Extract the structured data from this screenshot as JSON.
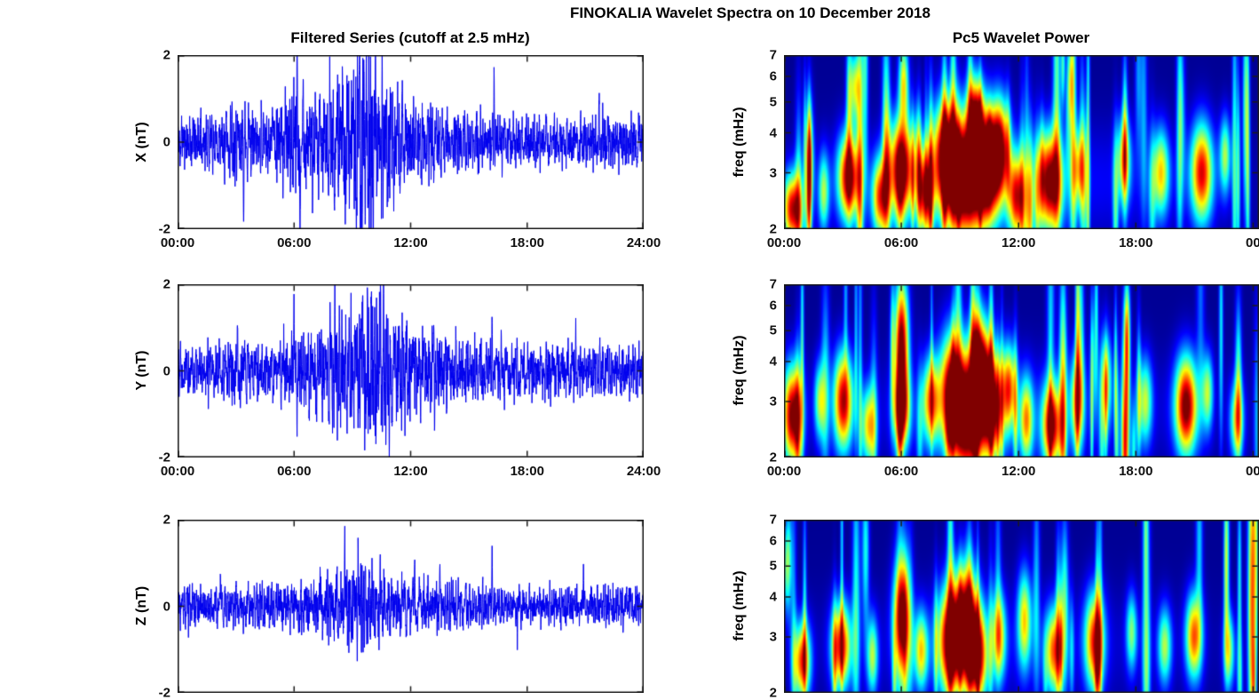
{
  "figure": {
    "title": "FINOKALIA Wavelet Spectra on 10 December 2018",
    "background": "#ffffff"
  },
  "style": {
    "axis_color": "#1a1a1a",
    "text_color": "#000000",
    "heat_background": "#00008c"
  },
  "chart_data": [
    {
      "id": "x-filtered-series",
      "type": "line",
      "row": 0,
      "column": "left",
      "title": "Filtered Series (cutoff at 2.5 mHz)",
      "ylabel": "X (nT)",
      "ylim": [
        -2,
        2
      ],
      "xlim_hours": [
        0,
        24
      ],
      "xticks_hours": [
        0,
        6,
        12,
        18,
        24
      ],
      "xtick_labels": [
        "00:00",
        "06:00",
        "12:00",
        "18:00",
        "24:00"
      ],
      "yticks": [
        2,
        0,
        -2
      ],
      "ytick_labels": [
        "2",
        "0",
        "-2"
      ],
      "line_color": "#0000ee",
      "series": {
        "name": "X filtered",
        "seed": 11,
        "spike_width_hours": 0.02,
        "envelope": [
          [
            0,
            0.3
          ],
          [
            2,
            0.32
          ],
          [
            3,
            0.45
          ],
          [
            4,
            0.33
          ],
          [
            5,
            0.4
          ],
          [
            6,
            0.6
          ],
          [
            7,
            0.55
          ],
          [
            8,
            0.8
          ],
          [
            9,
            1.0
          ],
          [
            9.7,
            1.05
          ],
          [
            10.3,
            0.9
          ],
          [
            11,
            0.62
          ],
          [
            12,
            0.48
          ],
          [
            13,
            0.42
          ],
          [
            14,
            0.35
          ],
          [
            16,
            0.3
          ],
          [
            17,
            0.3
          ],
          [
            20,
            0.28
          ],
          [
            22,
            0.32
          ],
          [
            24,
            0.3
          ]
        ],
        "spikes": [
          [
            3.4,
            -1.05
          ],
          [
            4.9,
            0.95
          ],
          [
            6.15,
            1.75
          ],
          [
            6.3,
            -1.8
          ],
          [
            8.9,
            1.25
          ],
          [
            9.6,
            1.55
          ],
          [
            9.9,
            -1.35
          ],
          [
            10.2,
            1.3
          ],
          [
            16.3,
            1.65
          ],
          [
            21.7,
            0.8
          ]
        ]
      }
    },
    {
      "id": "y-filtered-series",
      "type": "line",
      "row": 1,
      "column": "left",
      "title": "",
      "ylabel": "Y (nT)",
      "ylim": [
        -2,
        2
      ],
      "xlim_hours": [
        0,
        24
      ],
      "xticks_hours": [
        0,
        6,
        12,
        18,
        24
      ],
      "xtick_labels": [
        "00:00",
        "06:00",
        "12:00",
        "18:00",
        "24:00"
      ],
      "yticks": [
        2,
        0,
        -2
      ],
      "ytick_labels": [
        "2",
        "0",
        "-2"
      ],
      "line_color": "#0000ee",
      "series": {
        "name": "Y filtered",
        "seed": 22,
        "spike_width_hours": 0.02,
        "envelope": [
          [
            0,
            0.3
          ],
          [
            1,
            0.28
          ],
          [
            2,
            0.32
          ],
          [
            3,
            0.38
          ],
          [
            4,
            0.3
          ],
          [
            5,
            0.33
          ],
          [
            6,
            0.45
          ],
          [
            7,
            0.48
          ],
          [
            8,
            0.62
          ],
          [
            9,
            0.78
          ],
          [
            9.8,
            0.92
          ],
          [
            10.5,
            0.85
          ],
          [
            11,
            0.68
          ],
          [
            12,
            0.52
          ],
          [
            13,
            0.48
          ],
          [
            14,
            0.38
          ],
          [
            15,
            0.33
          ],
          [
            16,
            0.35
          ],
          [
            18,
            0.3
          ],
          [
            20,
            0.3
          ],
          [
            22,
            0.32
          ],
          [
            24,
            0.3
          ]
        ],
        "spikes": [
          [
            3.6,
            0.9
          ],
          [
            6.0,
            1.35
          ],
          [
            6.15,
            -0.95
          ],
          [
            8.1,
            1.15
          ],
          [
            9.5,
            1.45
          ],
          [
            10.4,
            1.5
          ],
          [
            10.9,
            -1.9
          ],
          [
            12.1,
            0.85
          ],
          [
            16.2,
            1.05
          ],
          [
            20.5,
            0.65
          ]
        ]
      }
    },
    {
      "id": "z-filtered-series",
      "type": "line",
      "row": 2,
      "column": "left",
      "title": "",
      "ylabel": "Z (nT)",
      "ylim": [
        -2,
        2
      ],
      "xlim_hours": [
        0,
        24
      ],
      "xticks_hours": [
        0,
        6,
        12,
        18,
        24
      ],
      "xtick_labels": [],
      "yticks": [
        2,
        0,
        -2
      ],
      "ytick_labels": [
        "2",
        "0",
        "-2"
      ],
      "line_color": "#0000ee",
      "series": {
        "name": "Z filtered",
        "seed": 33,
        "spike_width_hours": 0.02,
        "envelope": [
          [
            0,
            0.22
          ],
          [
            2,
            0.25
          ],
          [
            4,
            0.22
          ],
          [
            6,
            0.3
          ],
          [
            7,
            0.28
          ],
          [
            8,
            0.4
          ],
          [
            9,
            0.52
          ],
          [
            10,
            0.48
          ],
          [
            11,
            0.32
          ],
          [
            12,
            0.3
          ],
          [
            13,
            0.28
          ],
          [
            14,
            0.26
          ],
          [
            16,
            0.26
          ],
          [
            18,
            0.22
          ],
          [
            20,
            0.22
          ],
          [
            22,
            0.23
          ],
          [
            24,
            0.22
          ]
        ],
        "spikes": [
          [
            2.2,
            0.85
          ],
          [
            3.4,
            -0.8
          ],
          [
            6.3,
            -0.7
          ],
          [
            8.6,
            1.0
          ],
          [
            9.3,
            0.95
          ],
          [
            12.2,
            1.05
          ],
          [
            13.5,
            0.75
          ],
          [
            16.2,
            1.5
          ],
          [
            17.5,
            -0.55
          ],
          [
            20.9,
            0.65
          ],
          [
            23.3,
            0.55
          ]
        ]
      }
    },
    {
      "id": "x-wavelet-power",
      "type": "heatmap",
      "row": 0,
      "column": "right",
      "title": "Pc5 Wavelet Power",
      "ylabel": "freq (mHz)",
      "flim_mhz": [
        2,
        7
      ],
      "yscale": "log",
      "xlim_hours": [
        0,
        24.3
      ],
      "xticks_hours": [
        0,
        6,
        12,
        18,
        24
      ],
      "xtick_labels": [
        "00:00",
        "06:00",
        "12:00",
        "18:00",
        "00"
      ],
      "yticks": [
        7,
        6,
        5,
        4,
        3,
        2
      ],
      "ytick_labels": [
        "7",
        "6",
        "5",
        "4",
        "3",
        "2"
      ],
      "colormap": "jet",
      "background_level": 0.02,
      "streaks": {
        "seed": 101,
        "count": 48,
        "amp_range": [
          0.2,
          0.45
        ]
      },
      "events": [
        [
          12,
          2.8,
          7,
          0.3,
          0.12
        ],
        [
          0.4,
          2.3,
          0.35,
          0.18,
          0.9
        ],
        [
          1.3,
          3.2,
          0.15,
          0.3,
          0.45
        ],
        [
          2.0,
          2.6,
          0.2,
          0.2,
          0.5
        ],
        [
          3.3,
          2.9,
          0.4,
          0.22,
          0.95
        ],
        [
          3.6,
          5.6,
          0.2,
          0.18,
          0.55
        ],
        [
          4.9,
          2.5,
          0.3,
          0.2,
          0.75
        ],
        [
          6.0,
          3.1,
          0.45,
          0.25,
          1.0
        ],
        [
          6.1,
          5.8,
          0.18,
          0.22,
          0.6
        ],
        [
          7.2,
          2.6,
          0.3,
          0.22,
          0.8
        ],
        [
          8.3,
          3.4,
          0.5,
          0.28,
          1.0
        ],
        [
          9.2,
          2.8,
          0.6,
          0.3,
          1.0
        ],
        [
          9.8,
          4.4,
          0.3,
          0.22,
          0.9
        ],
        [
          10.3,
          3.0,
          0.5,
          0.28,
          1.0
        ],
        [
          11.0,
          3.6,
          0.35,
          0.25,
          0.9
        ],
        [
          11.9,
          2.5,
          0.3,
          0.22,
          0.8
        ],
        [
          13.6,
          2.8,
          0.45,
          0.25,
          0.95
        ],
        [
          15.1,
          3.1,
          0.22,
          0.2,
          0.5
        ],
        [
          17.4,
          3.3,
          0.25,
          0.22,
          0.55
        ],
        [
          19.3,
          3.0,
          0.3,
          0.22,
          0.6
        ],
        [
          21.4,
          3.0,
          0.4,
          0.25,
          0.85
        ],
        [
          22.6,
          3.4,
          0.2,
          0.2,
          0.5
        ]
      ]
    },
    {
      "id": "y-wavelet-power",
      "type": "heatmap",
      "row": 1,
      "column": "right",
      "title": "",
      "ylabel": "freq (mHz)",
      "flim_mhz": [
        2,
        7
      ],
      "yscale": "log",
      "xlim_hours": [
        0,
        24.3
      ],
      "xticks_hours": [
        0,
        6,
        12,
        18,
        24
      ],
      "xtick_labels": [
        "00:00",
        "06:00",
        "12:00",
        "18:00",
        "00"
      ],
      "yticks": [
        7,
        6,
        5,
        4,
        3,
        2
      ],
      "ytick_labels": [
        "7",
        "6",
        "5",
        "4",
        "3",
        "2"
      ],
      "colormap": "jet",
      "background_level": 0.02,
      "streaks": {
        "seed": 202,
        "count": 44,
        "amp_range": [
          0.2,
          0.45
        ]
      },
      "events": [
        [
          12,
          2.8,
          7,
          0.3,
          0.1
        ],
        [
          0.4,
          2.7,
          0.35,
          0.25,
          1.0
        ],
        [
          1.8,
          3.0,
          0.2,
          0.2,
          0.5
        ],
        [
          3.0,
          3.0,
          0.35,
          0.25,
          0.9
        ],
        [
          4.3,
          2.5,
          0.25,
          0.2,
          0.6
        ],
        [
          6.0,
          4.5,
          0.25,
          0.35,
          1.0
        ],
        [
          6.0,
          2.8,
          0.3,
          0.2,
          0.7
        ],
        [
          7.5,
          3.0,
          0.3,
          0.22,
          0.7
        ],
        [
          8.6,
          3.2,
          0.45,
          0.3,
          1.0
        ],
        [
          9.4,
          2.6,
          0.5,
          0.3,
          1.0
        ],
        [
          10.0,
          3.8,
          0.35,
          0.28,
          0.95
        ],
        [
          10.6,
          2.9,
          0.4,
          0.28,
          1.0
        ],
        [
          11.5,
          3.3,
          0.25,
          0.22,
          0.7
        ],
        [
          12.4,
          2.6,
          0.25,
          0.22,
          0.65
        ],
        [
          13.7,
          2.5,
          0.35,
          0.22,
          0.9
        ],
        [
          15.0,
          3.0,
          0.25,
          0.25,
          0.6
        ],
        [
          16.5,
          3.5,
          0.2,
          0.25,
          0.5
        ],
        [
          18.5,
          3.0,
          0.25,
          0.22,
          0.5
        ],
        [
          20.6,
          2.9,
          0.4,
          0.25,
          1.0
        ],
        [
          21.7,
          3.2,
          0.2,
          0.2,
          0.5
        ],
        [
          23.2,
          2.6,
          0.25,
          0.2,
          0.55
        ]
      ]
    },
    {
      "id": "z-wavelet-power",
      "type": "heatmap",
      "row": 2,
      "column": "right",
      "title": "",
      "ylabel": "freq (mHz)",
      "flim_mhz": [
        2,
        7
      ],
      "yscale": "log",
      "xlim_hours": [
        0,
        24.3
      ],
      "xticks_hours": [
        0,
        6,
        12,
        18,
        24
      ],
      "xtick_labels": [],
      "yticks": [
        7,
        6,
        5,
        4,
        3,
        2
      ],
      "ytick_labels": [
        "7",
        "6",
        "5",
        "4",
        "3",
        "2"
      ],
      "colormap": "jet",
      "background_level": 0.02,
      "streaks": {
        "seed": 303,
        "count": 40,
        "amp_range": [
          0.18,
          0.42
        ]
      },
      "events": [
        [
          11,
          2.8,
          7,
          0.3,
          0.08
        ],
        [
          0.9,
          2.5,
          0.3,
          0.2,
          0.8
        ],
        [
          2.9,
          2.8,
          0.35,
          0.22,
          0.85
        ],
        [
          4.5,
          2.6,
          0.2,
          0.2,
          0.5
        ],
        [
          6.0,
          3.5,
          0.3,
          0.3,
          0.85
        ],
        [
          7.0,
          2.7,
          0.25,
          0.2,
          0.6
        ],
        [
          8.5,
          2.9,
          0.45,
          0.28,
          1.0
        ],
        [
          9.3,
          3.3,
          0.4,
          0.3,
          1.0
        ],
        [
          9.9,
          2.6,
          0.35,
          0.25,
          0.9
        ],
        [
          11.0,
          3.0,
          0.25,
          0.22,
          0.6
        ],
        [
          12.3,
          3.4,
          0.25,
          0.25,
          0.6
        ],
        [
          13.8,
          2.7,
          0.3,
          0.22,
          0.7
        ],
        [
          15.9,
          2.9,
          0.35,
          0.25,
          0.8
        ],
        [
          17.8,
          3.1,
          0.2,
          0.2,
          0.45
        ],
        [
          19.5,
          2.8,
          0.25,
          0.2,
          0.5
        ],
        [
          21.0,
          3.0,
          0.3,
          0.22,
          0.75
        ],
        [
          22.8,
          2.7,
          0.2,
          0.2,
          0.5
        ]
      ]
    }
  ]
}
